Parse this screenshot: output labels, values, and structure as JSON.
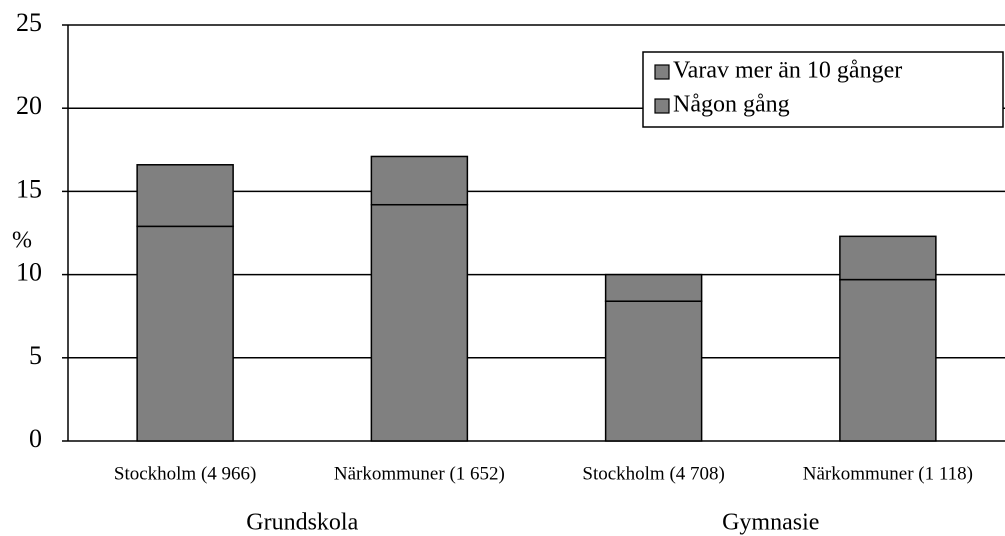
{
  "chart_data": {
    "type": "stacked_bar",
    "categories": [
      "Stockholm (4 966)",
      "Närkommuner (1 652)",
      "Stockholm (4 708)",
      "Närkommuner (1 118)"
    ],
    "group_labels": [
      "Grundskola",
      "Gymnasie"
    ],
    "ylabel": "%",
    "series": [
      {
        "name": "Någon gång",
        "color": "#808080",
        "values": [
          12.9,
          14.2,
          8.4,
          9.7
        ]
      },
      {
        "name": "Varav mer än 10 gånger",
        "color": "#808080",
        "values": [
          3.7,
          2.9,
          1.6,
          2.6
        ]
      }
    ],
    "ylim": [
      0,
      25
    ],
    "yticks": [
      0,
      5,
      10,
      15,
      20,
      25
    ],
    "grid": true,
    "legend": "upper right"
  }
}
